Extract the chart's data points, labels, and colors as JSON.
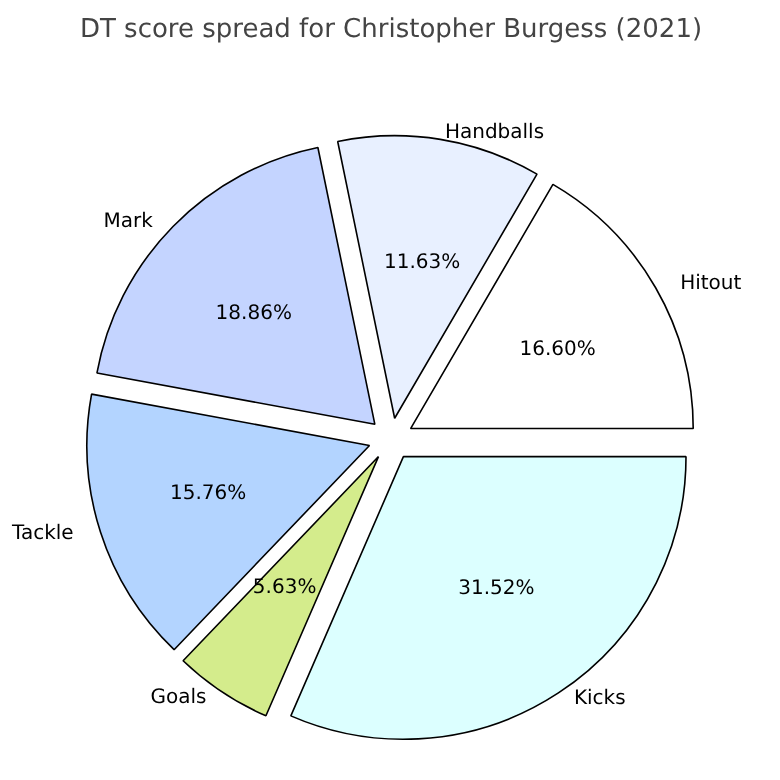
{
  "chart_data": {
    "type": "pie",
    "title": "DT score spread for Christopher Burgess (2021)",
    "categories": [
      "Hitout",
      "Handballs",
      "Mark",
      "Tackle",
      "Goals",
      "Kicks"
    ],
    "values": [
      16.6,
      11.63,
      18.86,
      15.76,
      5.63,
      31.52
    ],
    "value_labels": [
      "16.60%",
      "11.63%",
      "18.86%",
      "15.76%",
      "5.63%",
      "31.52%"
    ],
    "colors": [
      "#ffffff",
      "#e8f0ff",
      "#c4d4ff",
      "#b3d4ff",
      "#d4ec8c",
      "#dcffff"
    ]
  }
}
